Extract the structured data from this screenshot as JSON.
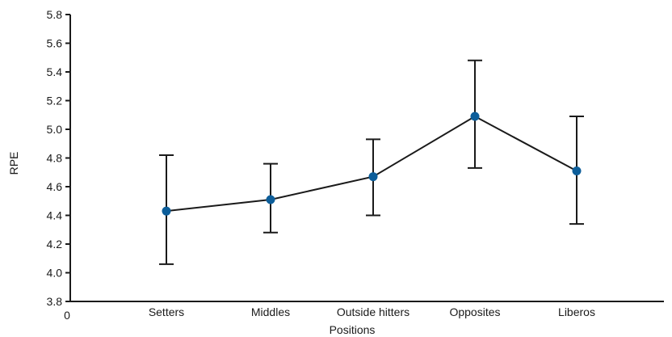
{
  "chart_data": {
    "type": "line",
    "title": "",
    "xlabel": "Positions",
    "ylabel": "RPE",
    "ylim": [
      3.8,
      5.8
    ],
    "y_ticks": [
      "3.8",
      "4.0",
      "4.2",
      "4.4",
      "4.6",
      "4.8",
      "5.0",
      "5.2",
      "5.4",
      "5.6",
      "5.8"
    ],
    "x_origin_label": "0",
    "categories": [
      "Setters",
      "Middles",
      "Outside hitters",
      "Opposites",
      "Liberos"
    ],
    "series": [
      {
        "values": [
          4.43,
          4.51,
          4.67,
          5.09,
          4.71
        ],
        "error_low": [
          4.06,
          4.28,
          4.4,
          4.73,
          4.34
        ],
        "error_high": [
          4.82,
          4.76,
          4.93,
          5.48,
          5.09
        ]
      }
    ],
    "grid": false,
    "colors": {
      "marker": "#0d5e9a",
      "line": "#1a1a1a",
      "axis": "#1a1a1a"
    }
  }
}
